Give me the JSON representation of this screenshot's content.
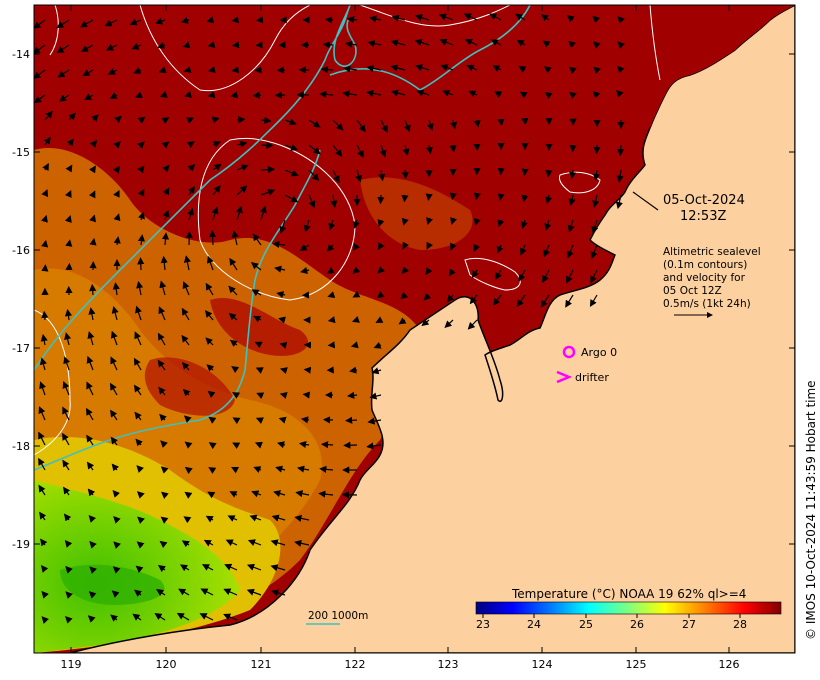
{
  "map": {
    "lat_ticks": [
      "-14",
      "-15",
      "-16",
      "-17",
      "-18",
      "-19"
    ],
    "lon_ticks": [
      "119",
      "120",
      "121",
      "122",
      "123",
      "124",
      "125",
      "126"
    ],
    "annotations": {
      "date": "05-Oct-2024",
      "time": "12:53Z",
      "sealevel_lines": [
        "Altimetric sealevel",
        "(0.1m contours)",
        "and velocity for",
        "05 Oct 12Z",
        "0.5m/s (1kt 24h)"
      ],
      "argo_label": "Argo 0",
      "drifter_label": "drifter",
      "depth_label": "200  1000m"
    },
    "colorbar": {
      "title": "Temperature (°C) NOAA 19 62% ql>=4",
      "ticks": [
        "23",
        "24",
        "25",
        "26",
        "27",
        "28"
      ],
      "colors": [
        "#00007f",
        "#0000ff",
        "#007fff",
        "#00ffff",
        "#7fff7f",
        "#ffff00",
        "#ff7f00",
        "#ff0000",
        "#7f0000"
      ]
    },
    "credit": "© IMOS 10-Oct-2024 11:43:59 Hobart time",
    "colors": {
      "land": "#fdd0a0",
      "warm_sea": "#a00000",
      "orange_sea": "#d86a00",
      "yellow_sea": "#d8d000",
      "green_sea": "#60d000",
      "isobath": "#40c0c0",
      "marker": "#ff00ff"
    }
  }
}
